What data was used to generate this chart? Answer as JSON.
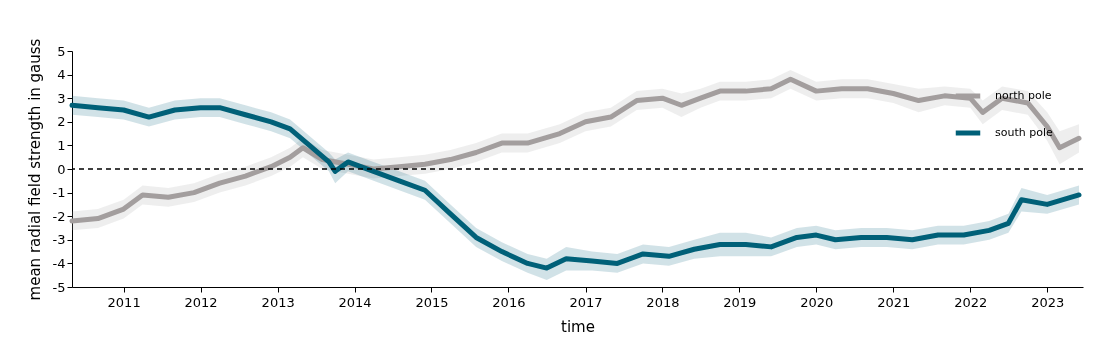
{
  "chart_data": {
    "type": "line",
    "xlabel": "time",
    "ylabel": "mean radial field strength in gauss",
    "xlim": [
      "2010-05-01",
      "2023-06-20"
    ],
    "xticks": [
      "2011",
      "2012",
      "2013",
      "2014",
      "2015",
      "2016",
      "2017",
      "2018",
      "2019",
      "2020",
      "2021",
      "2022",
      "2023"
    ],
    "ylim": [
      -5,
      5
    ],
    "yticks": [
      -5,
      -4,
      -3,
      -2,
      -1,
      0,
      1,
      2,
      3,
      4,
      5
    ],
    "grid": false,
    "legend": "top right",
    "line_style": "solid",
    "marker": "none",
    "ref_lines": [
      {
        "axis": "y",
        "value": 0,
        "color": "#000000",
        "line_style": "dashed"
      }
    ],
    "series": [
      {
        "name": "north pole",
        "color": "#a39e9e",
        "x": [
          "2010-05",
          "2010-09",
          "2011-01",
          "2011-04",
          "2011-08",
          "2011-12",
          "2012-04",
          "2012-08",
          "2012-12",
          "2013-03",
          "2013-05",
          "2013-08",
          "2013-12",
          "2014-04",
          "2014-08",
          "2014-12",
          "2015-04",
          "2015-08",
          "2015-12",
          "2016-04",
          "2016-09",
          "2017-01",
          "2017-05",
          "2017-09",
          "2018-01",
          "2018-04",
          "2018-07",
          "2018-10",
          "2019-02",
          "2019-06",
          "2019-09",
          "2020-01",
          "2020-05",
          "2020-09",
          "2021-01",
          "2021-05",
          "2021-09",
          "2022-01",
          "2022-03",
          "2022-06",
          "2022-10",
          "2023-01",
          "2023-03",
          "2023-06"
        ],
        "values": [
          -2.2,
          -2.1,
          -1.7,
          -1.1,
          -1.2,
          -1.0,
          -0.6,
          -0.3,
          0.1,
          0.5,
          0.9,
          0.4,
          0.2,
          0.0,
          0.1,
          0.2,
          0.4,
          0.7,
          1.1,
          1.1,
          1.5,
          2.0,
          2.2,
          2.9,
          3.0,
          2.7,
          3.0,
          3.3,
          3.3,
          3.4,
          3.8,
          3.3,
          3.4,
          3.4,
          3.2,
          2.9,
          3.1,
          3.0,
          2.4,
          3.0,
          2.8,
          1.8,
          0.9,
          1.3
        ],
        "lower": [
          -2.6,
          -2.5,
          -2.1,
          -1.5,
          -1.6,
          -1.4,
          -1.0,
          -0.7,
          -0.3,
          0.1,
          0.5,
          0.0,
          -0.2,
          -0.4,
          -0.3,
          -0.2,
          0.0,
          0.3,
          0.7,
          0.7,
          1.1,
          1.6,
          1.8,
          2.5,
          2.6,
          2.2,
          2.6,
          2.9,
          2.9,
          3.0,
          3.4,
          2.9,
          3.0,
          3.0,
          2.8,
          2.4,
          2.7,
          2.6,
          1.9,
          2.5,
          2.3,
          1.2,
          0.2,
          0.7
        ],
        "upper": [
          -1.8,
          -1.7,
          -1.3,
          -0.7,
          -0.8,
          -0.6,
          -0.2,
          0.1,
          0.5,
          0.9,
          1.3,
          0.8,
          0.6,
          0.4,
          0.5,
          0.6,
          0.8,
          1.1,
          1.5,
          1.5,
          1.9,
          2.4,
          2.6,
          3.3,
          3.4,
          3.2,
          3.4,
          3.7,
          3.7,
          3.8,
          4.2,
          3.7,
          3.8,
          3.8,
          3.6,
          3.4,
          3.5,
          3.4,
          2.9,
          3.5,
          3.3,
          2.4,
          1.6,
          1.9
        ]
      },
      {
        "name": "south pole",
        "color": "#006078",
        "x": [
          "2010-05",
          "2010-09",
          "2011-01",
          "2011-05",
          "2011-09",
          "2012-01",
          "2012-04",
          "2012-08",
          "2012-12",
          "2013-03",
          "2013-06",
          "2013-09",
          "2013-10",
          "2013-12",
          "2014-04",
          "2014-08",
          "2014-12",
          "2015-04",
          "2015-08",
          "2015-12",
          "2016-04",
          "2016-07",
          "2016-10",
          "2017-02",
          "2017-06",
          "2017-10",
          "2018-02",
          "2018-06",
          "2018-10",
          "2019-02",
          "2019-06",
          "2019-10",
          "2020-01",
          "2020-04",
          "2020-08",
          "2020-12",
          "2021-04",
          "2021-08",
          "2021-12",
          "2022-04",
          "2022-07",
          "2022-09",
          "2023-01",
          "2023-06"
        ],
        "values": [
          2.7,
          2.6,
          2.5,
          2.2,
          2.5,
          2.6,
          2.6,
          2.3,
          2.0,
          1.7,
          1.0,
          0.3,
          -0.1,
          0.3,
          -0.1,
          -0.5,
          -0.9,
          -1.9,
          -2.9,
          -3.5,
          -4.0,
          -4.2,
          -3.8,
          -3.9,
          -4.0,
          -3.6,
          -3.7,
          -3.4,
          -3.2,
          -3.2,
          -3.3,
          -2.9,
          -2.8,
          -3.0,
          -2.9,
          -2.9,
          -3.0,
          -2.8,
          -2.8,
          -2.6,
          -2.3,
          -1.3,
          -1.5,
          -1.1
        ],
        "lower": [
          2.3,
          2.2,
          2.1,
          1.8,
          2.1,
          2.2,
          2.2,
          1.9,
          1.6,
          1.3,
          0.6,
          -0.1,
          -0.6,
          -0.1,
          -0.5,
          -0.9,
          -1.3,
          -2.3,
          -3.3,
          -3.9,
          -4.4,
          -4.7,
          -4.3,
          -4.3,
          -4.4,
          -4.0,
          -4.1,
          -3.8,
          -3.7,
          -3.7,
          -3.7,
          -3.3,
          -3.2,
          -3.4,
          -3.3,
          -3.3,
          -3.4,
          -3.2,
          -3.2,
          -3.0,
          -2.7,
          -1.8,
          -1.9,
          -1.5
        ],
        "upper": [
          3.1,
          3.0,
          2.9,
          2.6,
          2.9,
          3.0,
          3.0,
          2.7,
          2.4,
          2.1,
          1.4,
          0.7,
          0.4,
          0.7,
          0.3,
          -0.1,
          -0.5,
          -1.5,
          -2.5,
          -3.1,
          -3.6,
          -3.8,
          -3.3,
          -3.5,
          -3.6,
          -3.2,
          -3.3,
          -3.0,
          -2.7,
          -2.7,
          -2.9,
          -2.5,
          -2.4,
          -2.6,
          -2.5,
          -2.5,
          -2.6,
          -2.4,
          -2.4,
          -2.2,
          -1.9,
          -0.8,
          -1.1,
          -0.7
        ]
      }
    ]
  }
}
